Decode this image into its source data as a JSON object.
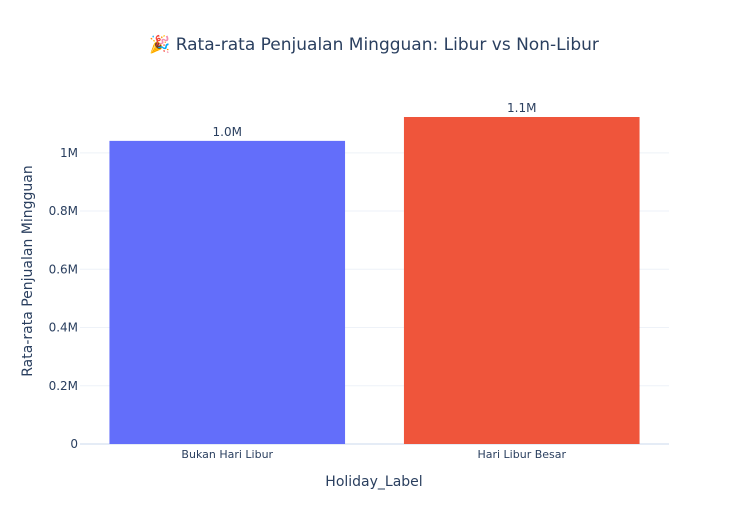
{
  "chart_data": {
    "type": "bar",
    "title": "🎉 Rata-rata Penjualan Mingguan: Libur vs Non-Libur",
    "xlabel": "Holiday_Label",
    "ylabel": "Rata-rata Penjualan Mingguan",
    "categories": [
      "Bukan Hari Libur",
      "Hari Libur Besar"
    ],
    "values": [
      1041000,
      1123000
    ],
    "data_labels": [
      "1.0M",
      "1.1M"
    ],
    "colors": [
      "#636efa",
      "#ef553b"
    ],
    "ylim": [
      0,
      1123000
    ],
    "yticks": [
      0,
      200000,
      400000,
      600000,
      800000,
      1000000
    ],
    "ytick_labels": [
      "0",
      "0.2M",
      "0.4M",
      "0.6M",
      "0.8M",
      "1M"
    ],
    "grid": true,
    "legend": "none"
  }
}
